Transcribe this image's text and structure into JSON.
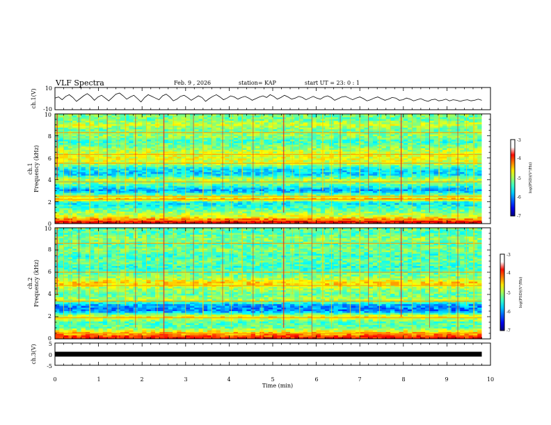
{
  "header": {
    "title": "VLF Spectra",
    "date": "Feb. 9 , 2026",
    "station": "station= KAP",
    "start": "start UT =  23: 0  : 1"
  },
  "chart_data": [
    {
      "type": "line",
      "name": "ch1-waveform",
      "ylabel": "ch.1(V)",
      "ylim": [
        -10,
        10
      ],
      "yticks": [
        "10",
        "-10"
      ],
      "xlim": [
        0,
        10
      ],
      "data_span_min": 9.8,
      "samples": [
        0.5,
        1.5,
        -1.0,
        2.0,
        3.5,
        1.0,
        -2.5,
        0.0,
        2.5,
        4.5,
        2.0,
        -1.5,
        1.5,
        3.0,
        0.5,
        -2.0,
        1.0,
        4.0,
        5.0,
        2.5,
        -0.5,
        1.5,
        3.0,
        0.0,
        -3.0,
        1.0,
        3.5,
        2.0,
        0.5,
        -1.0,
        2.5,
        4.0,
        1.5,
        -2.0,
        -0.5,
        2.0,
        3.0,
        1.0,
        -1.5,
        0.5,
        2.5,
        1.0,
        -2.5,
        0.0,
        2.0,
        3.5,
        1.5,
        -1.0,
        0.5,
        2.5,
        1.5,
        -0.5,
        1.0,
        2.0,
        0.5,
        -1.5,
        0.0,
        1.5,
        2.5,
        1.0,
        3.5,
        2.0,
        -0.5,
        1.0,
        3.0,
        1.5,
        -0.5,
        0.5,
        2.0,
        1.0,
        -1.0,
        0.5,
        2.0,
        0.5,
        -0.5,
        1.5,
        2.5,
        1.0,
        -1.5,
        0.0,
        1.5,
        2.0,
        0.5,
        -1.0,
        0.5,
        1.5,
        0.0,
        -2.0,
        -1.0,
        0.5,
        1.5,
        0.0,
        -1.5,
        -0.5,
        1.0,
        0.5,
        -1.5,
        -1.0,
        0.5,
        -0.5,
        -2.0,
        -1.0,
        0.0,
        -1.5,
        -2.5,
        -1.0,
        -0.5,
        -2.0,
        -1.5,
        -0.5,
        -2.0,
        -1.0,
        -1.5,
        -2.5,
        -1.5,
        -1.0,
        -2.0,
        -1.5,
        -0.5,
        -1.5
      ]
    },
    {
      "type": "heatmap",
      "name": "ch1-spectrogram",
      "ylabel_line1": "ch.1",
      "ylabel_line2": "Frequency (kHz)",
      "ylim": [
        0,
        10
      ],
      "yticks": [
        "0",
        "2",
        "4",
        "6",
        "8",
        "10"
      ],
      "colorbar": {
        "label": "log(PSD)(V²/Hz)",
        "range": [
          -7,
          -3
        ],
        "ticks": [
          "-3",
          "-4",
          "-5",
          "-6",
          "-7"
        ]
      },
      "freq_profile_logpsd": [
        {
          "f": 0.0,
          "v": -3.3
        },
        {
          "f": 0.3,
          "v": -3.7
        },
        {
          "f": 0.6,
          "v": -4.6
        },
        {
          "f": 1.0,
          "v": -4.9
        },
        {
          "f": 1.5,
          "v": -5.3
        },
        {
          "f": 1.9,
          "v": -5.6
        },
        {
          "f": 2.2,
          "v": -4.2
        },
        {
          "f": 2.5,
          "v": -4.8
        },
        {
          "f": 3.0,
          "v": -5.9
        },
        {
          "f": 3.5,
          "v": -5.2
        },
        {
          "f": 4.0,
          "v": -4.7
        },
        {
          "f": 4.5,
          "v": -5.7
        },
        {
          "f": 5.0,
          "v": -5.5
        },
        {
          "f": 5.5,
          "v": -4.7
        },
        {
          "f": 6.0,
          "v": -4.6
        },
        {
          "f": 6.5,
          "v": -4.7
        },
        {
          "f": 7.0,
          "v": -5.0
        },
        {
          "f": 7.5,
          "v": -5.3
        },
        {
          "f": 8.0,
          "v": -4.9
        },
        {
          "f": 8.5,
          "v": -5.1
        },
        {
          "f": 9.0,
          "v": -4.7
        },
        {
          "f": 9.5,
          "v": -5.1
        },
        {
          "f": 10.0,
          "v": -5.0
        }
      ],
      "bright_lines_khz": [
        0.3,
        2.2,
        2.5,
        3.8,
        5.5,
        6.3,
        8.3
      ]
    },
    {
      "type": "heatmap",
      "name": "ch2-spectrogram",
      "ylabel_line1": "ch.2",
      "ylabel_line2": "Frequency (kHz)",
      "ylim": [
        0,
        10
      ],
      "yticks": [
        "0",
        "2",
        "4",
        "6",
        "8",
        "10"
      ],
      "colorbar": {
        "label": "log(PSD)(V²/Hz)",
        "range": [
          -7,
          -3
        ],
        "ticks": [
          "-3",
          "-4",
          "-5",
          "-6",
          "-7"
        ]
      },
      "freq_profile_logpsd": [
        {
          "f": 0.0,
          "v": -3.4
        },
        {
          "f": 0.5,
          "v": -4.2
        },
        {
          "f": 1.0,
          "v": -5.1
        },
        {
          "f": 1.5,
          "v": -5.2
        },
        {
          "f": 2.0,
          "v": -4.4
        },
        {
          "f": 2.5,
          "v": -6.0
        },
        {
          "f": 3.0,
          "v": -5.9
        },
        {
          "f": 3.5,
          "v": -4.8
        },
        {
          "f": 4.0,
          "v": -5.1
        },
        {
          "f": 4.5,
          "v": -4.9
        },
        {
          "f": 5.0,
          "v": -4.3
        },
        {
          "f": 5.5,
          "v": -4.9
        },
        {
          "f": 6.0,
          "v": -5.2
        },
        {
          "f": 6.5,
          "v": -5.3
        },
        {
          "f": 7.0,
          "v": -5.1
        },
        {
          "f": 7.5,
          "v": -5.3
        },
        {
          "f": 8.0,
          "v": -5.0
        },
        {
          "f": 8.5,
          "v": -5.2
        },
        {
          "f": 9.0,
          "v": -4.9
        },
        {
          "f": 9.5,
          "v": -5.2
        },
        {
          "f": 10.0,
          "v": -5.1
        }
      ],
      "bright_lines_khz": [
        0.5,
        1.9,
        3.4,
        4.8,
        6.0,
        8.6
      ]
    },
    {
      "type": "line",
      "name": "ch3-waveform",
      "ylabel": "ch.3(V)",
      "ylim": [
        -5,
        5
      ],
      "yticks": [
        "5",
        "0",
        "-5"
      ],
      "level_v": 0,
      "xlim": [
        0,
        10
      ],
      "data_span_min": 9.8
    }
  ],
  "xaxis": {
    "label": "Time (min)",
    "ticks": [
      "0",
      "1",
      "2",
      "3",
      "4",
      "5",
      "6",
      "7",
      "8",
      "9",
      "10"
    ],
    "range": [
      0,
      10
    ]
  },
  "impulses_min": [
    0.05,
    0.2,
    0.35,
    0.55,
    0.8,
    1.0,
    1.2,
    1.45,
    1.62,
    1.85,
    2.1,
    2.35,
    2.5,
    2.72,
    3.0,
    3.18,
    3.4,
    3.6,
    3.85,
    4.05,
    4.3,
    4.55,
    4.75,
    5.0,
    5.25,
    5.45,
    5.62,
    5.9,
    6.15,
    6.35,
    6.55,
    6.78,
    7.0,
    7.2,
    7.45,
    7.7,
    7.95,
    8.2,
    8.4,
    8.6,
    8.82,
    9.05,
    9.25,
    9.45,
    9.62
  ]
}
